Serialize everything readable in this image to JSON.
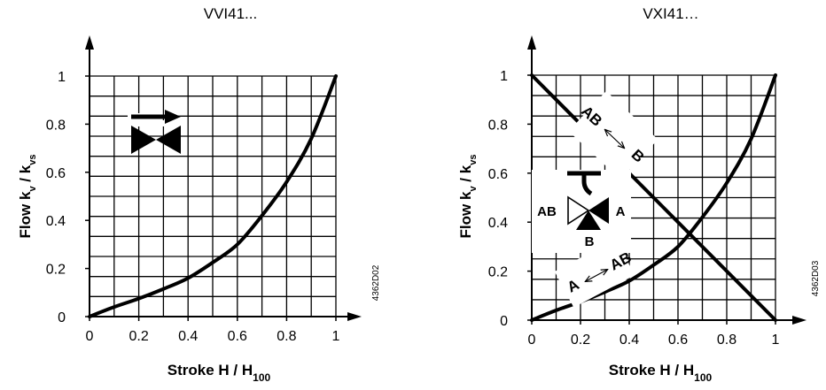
{
  "charts": [
    {
      "title": "VVI41...",
      "ylabel": {
        "main": "Flow k",
        "s1": "v",
        "mid": " / k",
        "s2": "vs"
      },
      "xlabel": {
        "main": "Stroke H / H",
        "sub": "100"
      },
      "doc_code": "4362D02",
      "x_ticks": [
        "0",
        "0.2",
        "0.4",
        "0.6",
        "0.8",
        "1"
      ],
      "y_ticks": [
        "0",
        "0.2",
        "0.4",
        "0.6",
        "0.8",
        "1"
      ]
    },
    {
      "title": "VXI41…",
      "ylabel": {
        "main": "Flow k",
        "s1": "v",
        "mid": " / k",
        "s2": "vs"
      },
      "xlabel": {
        "main": "Stroke H / H",
        "sub": "100"
      },
      "doc_code": "4362D03",
      "x_ticks": [
        "0",
        "0.2",
        "0.4",
        "0.6",
        "0.8",
        "1"
      ],
      "y_ticks": [
        "0",
        "0.2",
        "0.4",
        "0.6",
        "0.8",
        "1"
      ],
      "path_labels": {
        "rising": {
          "from": "A",
          "to": "AB"
        },
        "falling": {
          "from": "AB",
          "to": "B"
        }
      },
      "valve_ports": {
        "left": "AB",
        "right": "A",
        "bottom": "B"
      }
    }
  ],
  "chart_data": [
    {
      "type": "line",
      "title": "VVI41...",
      "xlabel": "Stroke H / H100",
      "ylabel": "Flow kv / kvs",
      "xlim": [
        0,
        1
      ],
      "ylim": [
        0,
        1
      ],
      "grid": true,
      "series": [
        {
          "x": [
            0,
            0.1,
            0.2,
            0.3,
            0.4,
            0.5,
            0.6,
            0.7,
            0.8,
            0.9,
            1.0
          ],
          "y": [
            0,
            0.04,
            0.075,
            0.115,
            0.16,
            0.225,
            0.3,
            0.42,
            0.56,
            0.74,
            1.0
          ]
        }
      ]
    },
    {
      "type": "line",
      "title": "VXI41…",
      "xlabel": "Stroke H / H100",
      "ylabel": "Flow kv / kvs",
      "xlim": [
        0,
        1
      ],
      "ylim": [
        0,
        1
      ],
      "grid": true,
      "series": [
        {
          "x": [
            0,
            0.1,
            0.2,
            0.3,
            0.4,
            0.5,
            0.6,
            0.7,
            0.8,
            0.9,
            1.0
          ],
          "y": [
            0,
            0.04,
            0.075,
            0.115,
            0.16,
            0.225,
            0.3,
            0.42,
            0.56,
            0.74,
            1.0
          ]
        },
        {
          "x": [
            0,
            1
          ],
          "y": [
            1,
            0
          ]
        }
      ]
    }
  ]
}
